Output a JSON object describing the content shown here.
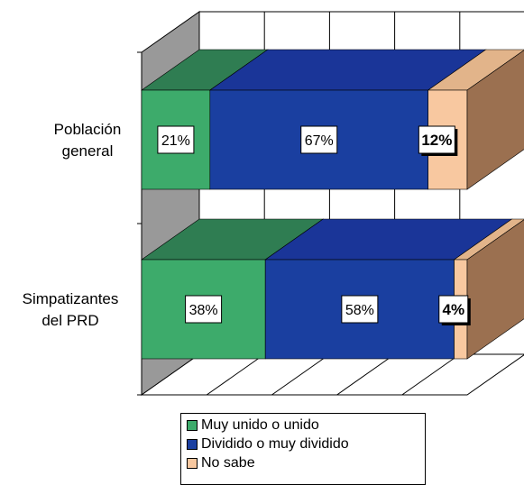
{
  "chart_data": {
    "type": "bar",
    "orientation": "horizontal",
    "stacked": "100%",
    "three_d": true,
    "categories": [
      "Población\ngeneral",
      "Simpatizantes\ndel PRD"
    ],
    "series": [
      {
        "name": "Muy unido o unido",
        "values": [
          21,
          38
        ],
        "labels": [
          "21%",
          "38%"
        ],
        "color": "#3dab6b",
        "top_color": "#2f7d52"
      },
      {
        "name": "Dividido o muy dividido",
        "values": [
          67,
          58
        ],
        "labels": [
          "67%",
          "58%"
        ],
        "color": "#1a3fa0",
        "top_color": "#1a3598"
      },
      {
        "name": "No sabe",
        "values": [
          12,
          4
        ],
        "labels": [
          "12%",
          "4%"
        ],
        "color": "#f8c8a0",
        "top_color": "#e2b48a",
        "side_color": "#9b7050",
        "bold_labels": true
      }
    ],
    "xlim": [
      0,
      100
    ],
    "grid": true,
    "legend_position": "bottom"
  }
}
